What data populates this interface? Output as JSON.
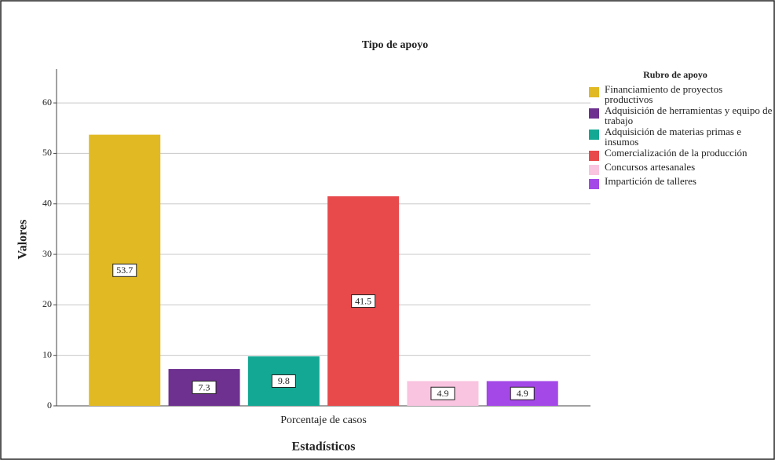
{
  "chart_data": {
    "type": "bar",
    "title": "Tipo de apoyo",
    "x_label": "Estadísticos",
    "y_label": "Valores",
    "categories": [
      "Porcentaje de casos"
    ],
    "legend_title": "Rubro de apoyo",
    "legend": "right",
    "series": [
      {
        "name": "Financiamiento de proyectos productivos",
        "color": "#e1b923",
        "values": [
          53.7
        ]
      },
      {
        "name": "Adquisición de herramientas y equipo de trabajo",
        "color": "#6e3190",
        "values": [
          7.3
        ]
      },
      {
        "name": "Adquisición de materias primas e insumos",
        "color": "#13a894",
        "values": [
          9.8
        ]
      },
      {
        "name": "Comercialización de la producción",
        "color": "#e84a4c",
        "values": [
          41.5
        ]
      },
      {
        "name": "Concursos artesanales",
        "color": "#f9c4e0",
        "values": [
          4.9
        ]
      },
      {
        "name": "Impartición de talleres",
        "color": "#a448e8",
        "values": [
          4.9
        ]
      }
    ],
    "ylim": [
      0,
      66.7
    ],
    "yticks": [
      0,
      10,
      20,
      30,
      40,
      50,
      60
    ],
    "grid": true
  }
}
